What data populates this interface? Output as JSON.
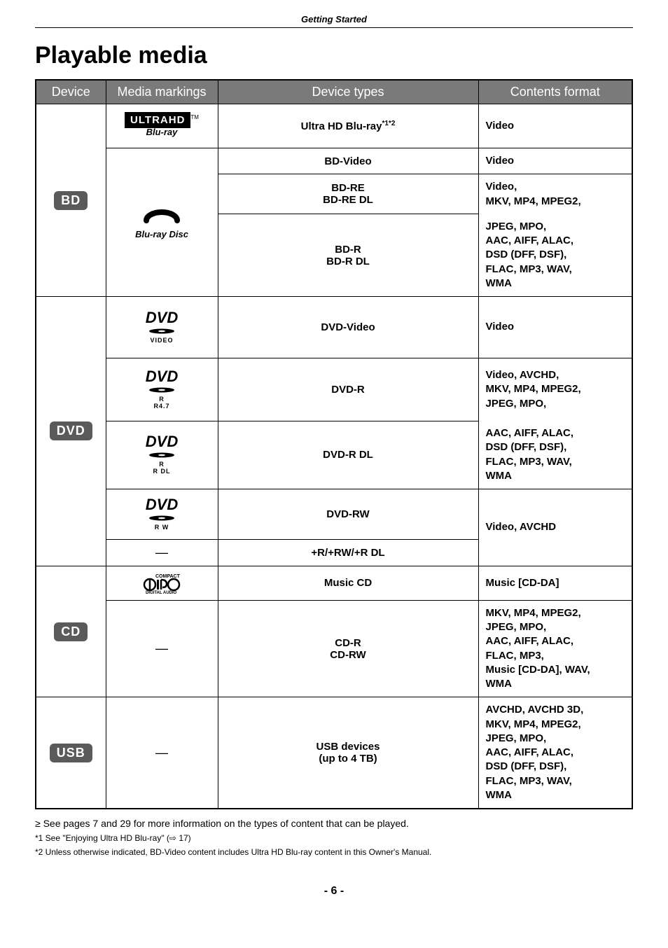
{
  "header_section": "Getting Started",
  "title": "Playable media",
  "columns": [
    "Device",
    "Media markings",
    "Device types",
    "Contents format"
  ],
  "devices": {
    "bd": {
      "label": "BD"
    },
    "dvd": {
      "label": "DVD"
    },
    "cd": {
      "label": "CD"
    },
    "usb": {
      "label": "USB"
    }
  },
  "logos": {
    "ultrahd": "ULTRAHD",
    "ultrahd_sub": "Blu-ray",
    "bluraydisc": "Blu-ray Disc",
    "dvd": "DVD",
    "dvd_video_sub": "VIDEO",
    "dvd_r47_sub": "R4.7",
    "dvd_r_sub": "R",
    "dvd_rdl_sub": "R DL",
    "dvd_rw_sub": "R W",
    "compact": "COMPACT",
    "disc_text": "disc",
    "digital_audio": "DIGITAL AUDIO",
    "tm": "TM"
  },
  "rows": {
    "bd_uhd": {
      "type": "Ultra HD Blu-ray",
      "sup": "*1*2",
      "format": "Video"
    },
    "bd_video": {
      "type": "BD-Video",
      "format": "Video"
    },
    "bd_re": {
      "type1": "BD-RE",
      "type2": "BD-RE DL",
      "format": "Video,\nMKV, MP4, MPEG2,"
    },
    "bd_r": {
      "type1": "BD-R",
      "type2": "BD-R DL",
      "format": "JPEG, MPO,\nAAC, AIFF, ALAC,\nDSD (DFF, DSF),\nFLAC, MP3, WAV,\nWMA"
    },
    "dvd_video": {
      "type": "DVD-Video",
      "format": "Video"
    },
    "dvd_r": {
      "type": "DVD-R",
      "format": "Video, AVCHD,\nMKV, MP4, MPEG2,\nJPEG, MPO,"
    },
    "dvd_rdl": {
      "type": "DVD-R DL",
      "format": "AAC, AIFF, ALAC,\nDSD (DFF, DSF),\nFLAC, MP3, WAV,\nWMA"
    },
    "dvd_rw": {
      "type": "DVD-RW",
      "format": "Video, AVCHD"
    },
    "dvd_plus": {
      "type": "+R/+RW/+R DL"
    },
    "cd_music": {
      "type": "Music CD",
      "format": "Music [CD-DA]"
    },
    "cd_r": {
      "type1": "CD-R",
      "type2": "CD-RW",
      "format": "MKV, MP4, MPEG2,\nJPEG, MPO,\nAAC, AIFF, ALAC,\nFLAC, MP3,\nMusic [CD-DA], WAV,\nWMA"
    },
    "usb": {
      "type1": "USB devices",
      "type2": "(up to 4 TB)",
      "format": "AVCHD, AVCHD 3D,\nMKV, MP4, MPEG2,\nJPEG, MPO,\nAAC, AIFF, ALAC,\nDSD (DFF, DSF),\nFLAC, MP3, WAV,\nWMA"
    }
  },
  "notes": {
    "bullet": "See pages 7 and 29 for more information on the types of content that can be played.",
    "fn1": "*1 See \"Enjoying Ultra HD Blu-ray\" (⇨ 17)",
    "fn2": "*2 Unless otherwise indicated, BD-Video content includes Ultra HD Blu-ray content in this Owner's Manual."
  },
  "page_number": "- 6 -"
}
